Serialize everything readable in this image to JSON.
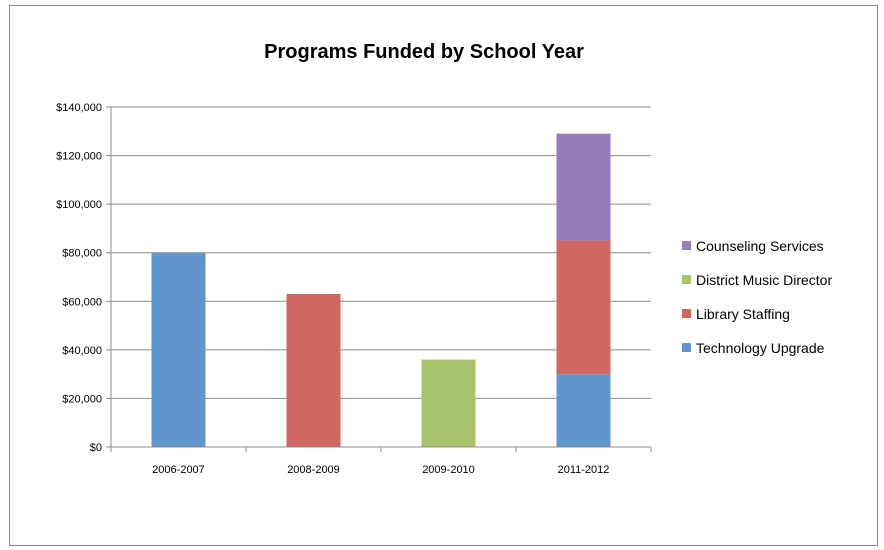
{
  "chart_data": {
    "type": "bar",
    "stacked": true,
    "title": "Programs Funded by School Year",
    "categories": [
      "2006-2007",
      "2008-2009",
      "2009-2010",
      "2011-2012"
    ],
    "series": [
      {
        "name": "Technology Upgrade",
        "color": "#6196cc",
        "values": [
          80000,
          0,
          0,
          30000
        ]
      },
      {
        "name": "Library Staffing",
        "color": "#cf6660",
        "values": [
          0,
          63000,
          0,
          55000
        ]
      },
      {
        "name": "District Music Director",
        "color": "#a7c46c",
        "values": [
          0,
          0,
          36000,
          0
        ]
      },
      {
        "name": "Counseling Services",
        "color": "#957dba",
        "values": [
          0,
          0,
          0,
          44000
        ]
      }
    ],
    "ylim": [
      0,
      140000
    ],
    "ytick_values": [
      0,
      20000,
      40000,
      60000,
      80000,
      100000,
      120000,
      140000
    ],
    "ytick_labels": [
      "$0",
      "$20,000",
      "$40,000",
      "$60,000",
      "$80,000",
      "$100,000",
      "$120,000",
      "$140,000"
    ],
    "grid": true,
    "legend_position": "right",
    "legend_order": [
      "Counseling Services",
      "District Music Director",
      "Library Staffing",
      "Technology Upgrade"
    ]
  }
}
